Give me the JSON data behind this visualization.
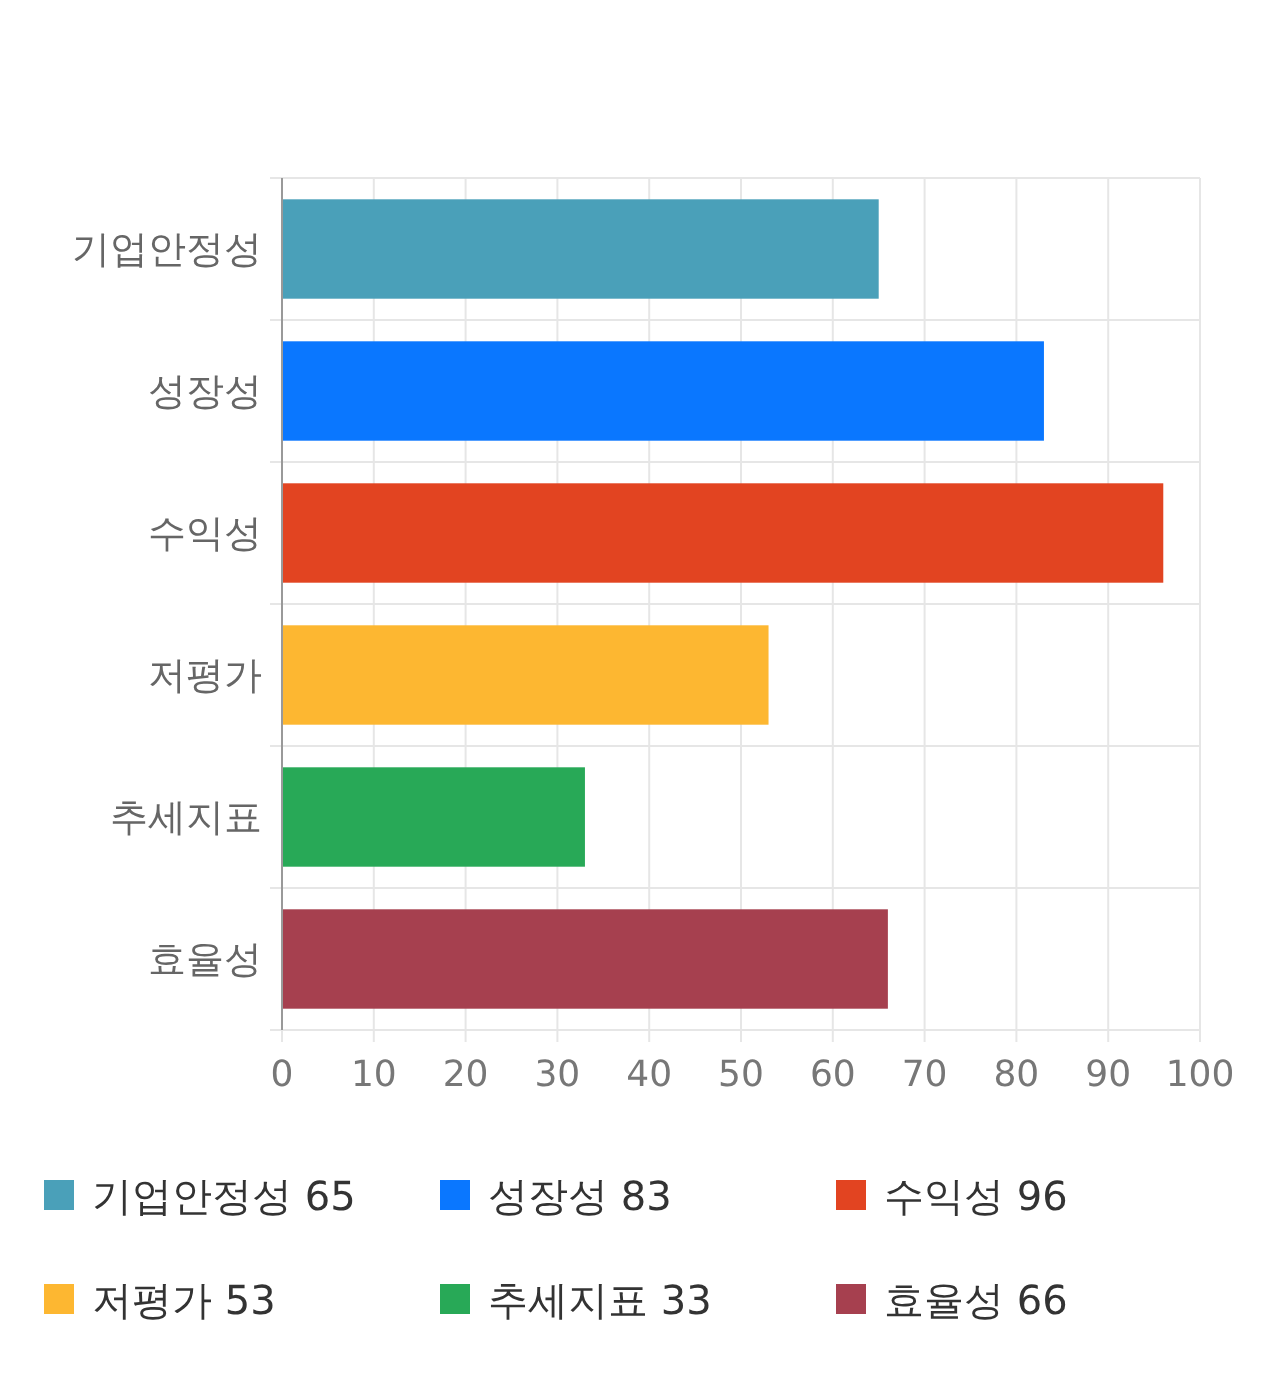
{
  "chart_data": {
    "type": "bar",
    "orientation": "horizontal",
    "categories": [
      "기업안정성",
      "성장성",
      "수익성",
      "저평가",
      "추세지표",
      "효율성"
    ],
    "series": [
      {
        "name": "기업안정성 65",
        "color": "#4aa0b9",
        "values": [
          65,
          null,
          null,
          null,
          null,
          null
        ]
      },
      {
        "name": "성장성 83",
        "color": "#0a77ff",
        "values": [
          null,
          83,
          null,
          null,
          null,
          null
        ]
      },
      {
        "name": "수익성 96",
        "color": "#e24421",
        "values": [
          null,
          null,
          96,
          null,
          null,
          null
        ]
      },
      {
        "name": "저평가 53",
        "color": "#fdb731",
        "values": [
          null,
          null,
          null,
          53,
          null,
          null
        ]
      },
      {
        "name": "추세지표 33",
        "color": "#28a957",
        "values": [
          null,
          null,
          null,
          null,
          33,
          null
        ]
      },
      {
        "name": "효율성 66",
        "color": "#a6404f",
        "values": [
          null,
          null,
          null,
          null,
          null,
          66
        ]
      }
    ],
    "xlim": [
      0,
      100
    ],
    "xticks": [
      0,
      10,
      20,
      30,
      40,
      50,
      60,
      70,
      80,
      90,
      100
    ],
    "grid": true,
    "legend": "bottom"
  }
}
